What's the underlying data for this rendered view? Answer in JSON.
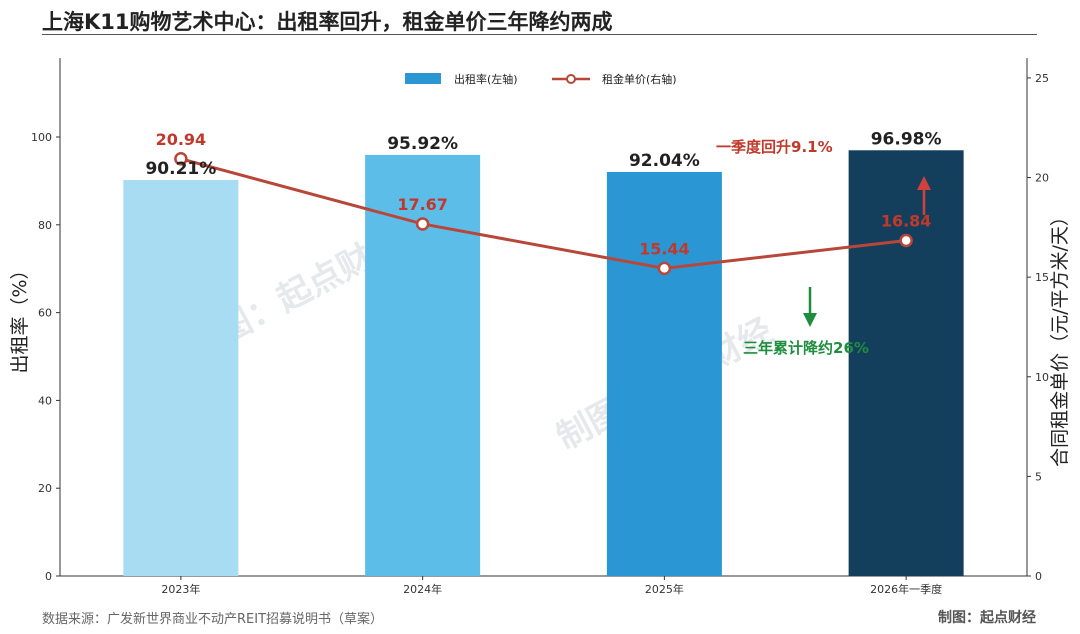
{
  "header": {
    "title": "上海K11购物艺术中心：出租率回升，租金单价三年降约两成"
  },
  "footer": {
    "source": "数据来源：广发新世界商业不动产REIT招募说明书（草案）",
    "credit": "制图：起点财经"
  },
  "watermarks": [
    "制图：起点财经",
    "制图：起点财经"
  ],
  "chart_data": {
    "type": "bar",
    "categories": [
      "2023年",
      "2024年",
      "2025年",
      "2026年一季度"
    ],
    "series": [
      {
        "name": "出租率(左轴)",
        "type": "bar",
        "axis": "left",
        "values": [
          90.21,
          95.92,
          92.04,
          96.98
        ],
        "labels": [
          "90.21%",
          "95.92%",
          "92.04%",
          "96.98%"
        ],
        "colors": [
          "#a7dcf3",
          "#5dbde9",
          "#2a97d4",
          "#143f5c"
        ]
      },
      {
        "name": "租金单价(右轴)",
        "type": "line",
        "axis": "right",
        "values": [
          20.94,
          17.67,
          15.44,
          16.84
        ],
        "labels": [
          "20.94",
          "17.67",
          "15.44",
          "16.84"
        ],
        "color": "#b8473a"
      }
    ],
    "ylabel": "出租率（%）",
    "y2label": "合同租金单价（元/平方米/天）",
    "ylim": [
      0,
      118
    ],
    "y2lim": [
      0,
      26
    ],
    "yticks": [
      0,
      20,
      40,
      60,
      80,
      100
    ],
    "y2ticks": [
      0,
      5,
      10,
      15,
      20,
      25
    ],
    "legend_position": "top-center",
    "grid": false,
    "annotations": [
      {
        "text": "一季度回升9.1%",
        "color": "#c0392b",
        "arrow": "up"
      },
      {
        "text": "三年累计降约26%",
        "color": "#1e8e3e",
        "arrow": "down"
      }
    ]
  }
}
